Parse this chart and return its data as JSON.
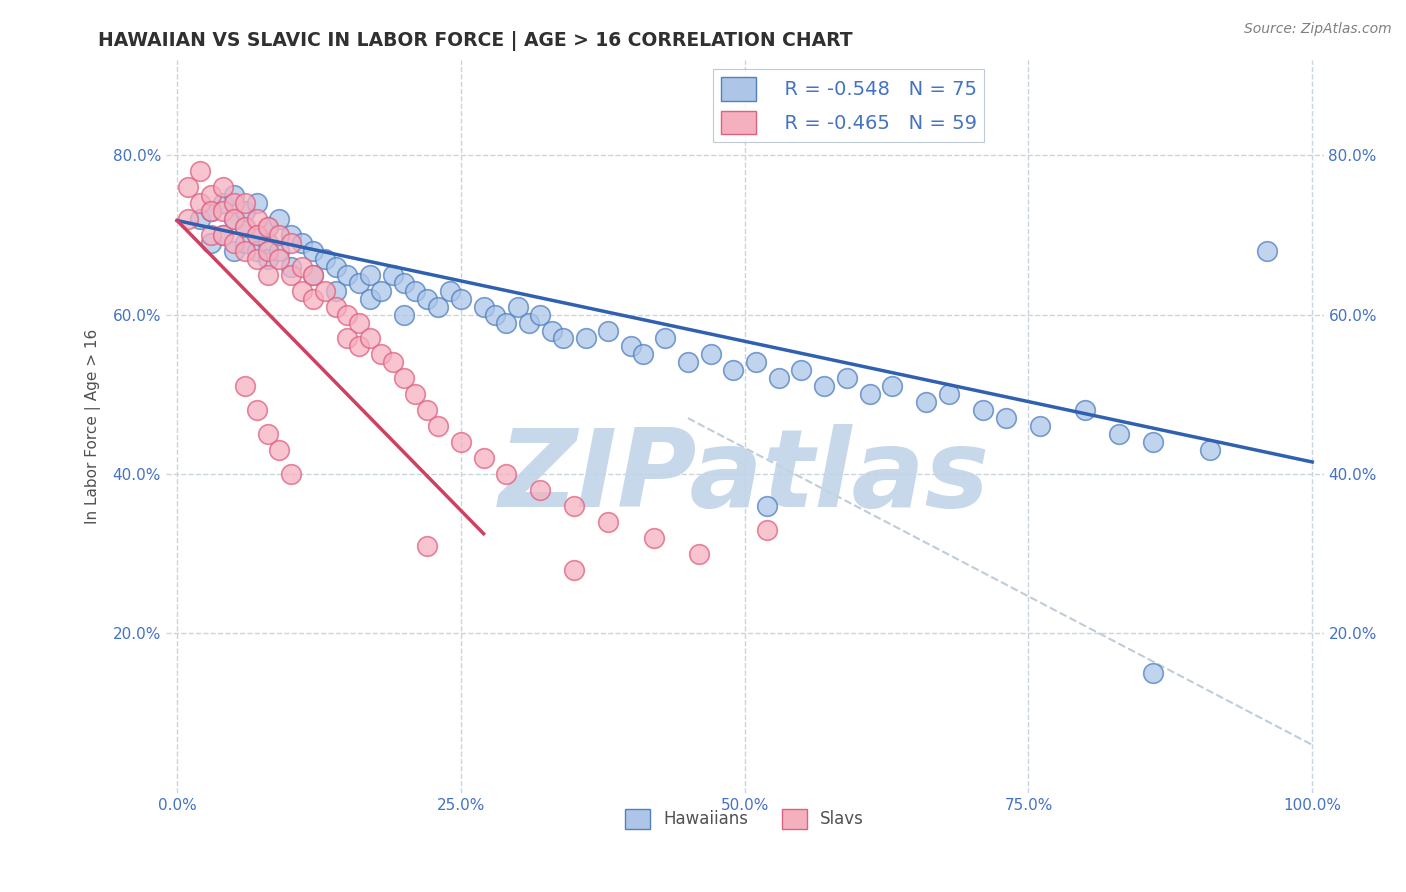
{
  "title": "HAWAIIAN VS SLAVIC IN LABOR FORCE | AGE > 16 CORRELATION CHART",
  "source_text": "Source: ZipAtlas.com",
  "ylabel": "In Labor Force | Age > 16",
  "xlim": [
    -0.01,
    1.01
  ],
  "ylim": [
    0.0,
    0.92
  ],
  "xticks": [
    0.0,
    0.25,
    0.5,
    0.75,
    1.0
  ],
  "yticks": [
    0.2,
    0.4,
    0.6,
    0.8
  ],
  "xticklabels": [
    "0.0%",
    "25.0%",
    "50.0%",
    "75.0%",
    "100.0%"
  ],
  "yticklabels": [
    "20.0%",
    "40.0%",
    "60.0%",
    "80.0%"
  ],
  "hawaiian_R": -0.548,
  "hawaiian_N": 75,
  "slavic_R": -0.465,
  "slavic_N": 59,
  "hawaiian_color": "#adc6e8",
  "slavic_color": "#f5b0c0",
  "hawaiian_edge_color": "#5080c0",
  "slavic_edge_color": "#e06080",
  "hawaiian_line_color": "#3060b0",
  "slavic_line_color": "#d04060",
  "watermark_zip_color": "#c5d8ee",
  "watermark_atlas_color": "#9ab8d8",
  "background_color": "#ffffff",
  "grid_color": "#c8d4e0",
  "title_color": "#303030",
  "axis_label_color": "#505050",
  "tick_color": "#4472c4",
  "legend_color": "#4472c4",
  "hawaiian_scatter_x": [
    0.02,
    0.03,
    0.03,
    0.04,
    0.04,
    0.05,
    0.05,
    0.05,
    0.06,
    0.06,
    0.06,
    0.07,
    0.07,
    0.07,
    0.08,
    0.08,
    0.08,
    0.09,
    0.09,
    0.1,
    0.1,
    0.11,
    0.12,
    0.12,
    0.13,
    0.14,
    0.14,
    0.15,
    0.16,
    0.17,
    0.17,
    0.18,
    0.19,
    0.2,
    0.2,
    0.21,
    0.22,
    0.23,
    0.24,
    0.25,
    0.27,
    0.28,
    0.29,
    0.3,
    0.31,
    0.32,
    0.33,
    0.34,
    0.36,
    0.38,
    0.4,
    0.41,
    0.43,
    0.45,
    0.47,
    0.49,
    0.51,
    0.53,
    0.55,
    0.57,
    0.59,
    0.61,
    0.63,
    0.66,
    0.68,
    0.71,
    0.73,
    0.76,
    0.8,
    0.83,
    0.86,
    0.91,
    0.52,
    0.96,
    0.86
  ],
  "hawaiian_scatter_y": [
    0.72,
    0.73,
    0.69,
    0.74,
    0.7,
    0.72,
    0.68,
    0.75,
    0.71,
    0.69,
    0.73,
    0.7,
    0.68,
    0.74,
    0.71,
    0.69,
    0.67,
    0.72,
    0.68,
    0.7,
    0.66,
    0.69,
    0.68,
    0.65,
    0.67,
    0.66,
    0.63,
    0.65,
    0.64,
    0.65,
    0.62,
    0.63,
    0.65,
    0.64,
    0.6,
    0.63,
    0.62,
    0.61,
    0.63,
    0.62,
    0.61,
    0.6,
    0.59,
    0.61,
    0.59,
    0.6,
    0.58,
    0.57,
    0.57,
    0.58,
    0.56,
    0.55,
    0.57,
    0.54,
    0.55,
    0.53,
    0.54,
    0.52,
    0.53,
    0.51,
    0.52,
    0.5,
    0.51,
    0.49,
    0.5,
    0.48,
    0.47,
    0.46,
    0.48,
    0.45,
    0.44,
    0.43,
    0.36,
    0.68,
    0.15
  ],
  "slavic_scatter_x": [
    0.01,
    0.01,
    0.02,
    0.02,
    0.03,
    0.03,
    0.03,
    0.04,
    0.04,
    0.04,
    0.05,
    0.05,
    0.05,
    0.06,
    0.06,
    0.06,
    0.07,
    0.07,
    0.07,
    0.08,
    0.08,
    0.08,
    0.09,
    0.09,
    0.1,
    0.1,
    0.11,
    0.11,
    0.12,
    0.12,
    0.13,
    0.14,
    0.15,
    0.15,
    0.16,
    0.16,
    0.17,
    0.18,
    0.19,
    0.2,
    0.21,
    0.22,
    0.23,
    0.25,
    0.27,
    0.29,
    0.32,
    0.35,
    0.38,
    0.42,
    0.46,
    0.06,
    0.07,
    0.08,
    0.09,
    0.1,
    0.22,
    0.35,
    0.52
  ],
  "slavic_scatter_y": [
    0.76,
    0.72,
    0.78,
    0.74,
    0.75,
    0.73,
    0.7,
    0.76,
    0.73,
    0.7,
    0.74,
    0.72,
    0.69,
    0.74,
    0.71,
    0.68,
    0.72,
    0.7,
    0.67,
    0.71,
    0.68,
    0.65,
    0.7,
    0.67,
    0.69,
    0.65,
    0.66,
    0.63,
    0.65,
    0.62,
    0.63,
    0.61,
    0.6,
    0.57,
    0.59,
    0.56,
    0.57,
    0.55,
    0.54,
    0.52,
    0.5,
    0.48,
    0.46,
    0.44,
    0.42,
    0.4,
    0.38,
    0.36,
    0.34,
    0.32,
    0.3,
    0.51,
    0.48,
    0.45,
    0.43,
    0.4,
    0.31,
    0.28,
    0.33
  ],
  "hawaiian_line_x": [
    0.0,
    1.0
  ],
  "hawaiian_line_y": [
    0.718,
    0.415
  ],
  "slavic_line_x": [
    0.0,
    0.27
  ],
  "slavic_line_y": [
    0.718,
    0.325
  ],
  "dashed_line_x": [
    0.45,
    1.0
  ],
  "dashed_line_y": [
    0.47,
    0.06
  ]
}
